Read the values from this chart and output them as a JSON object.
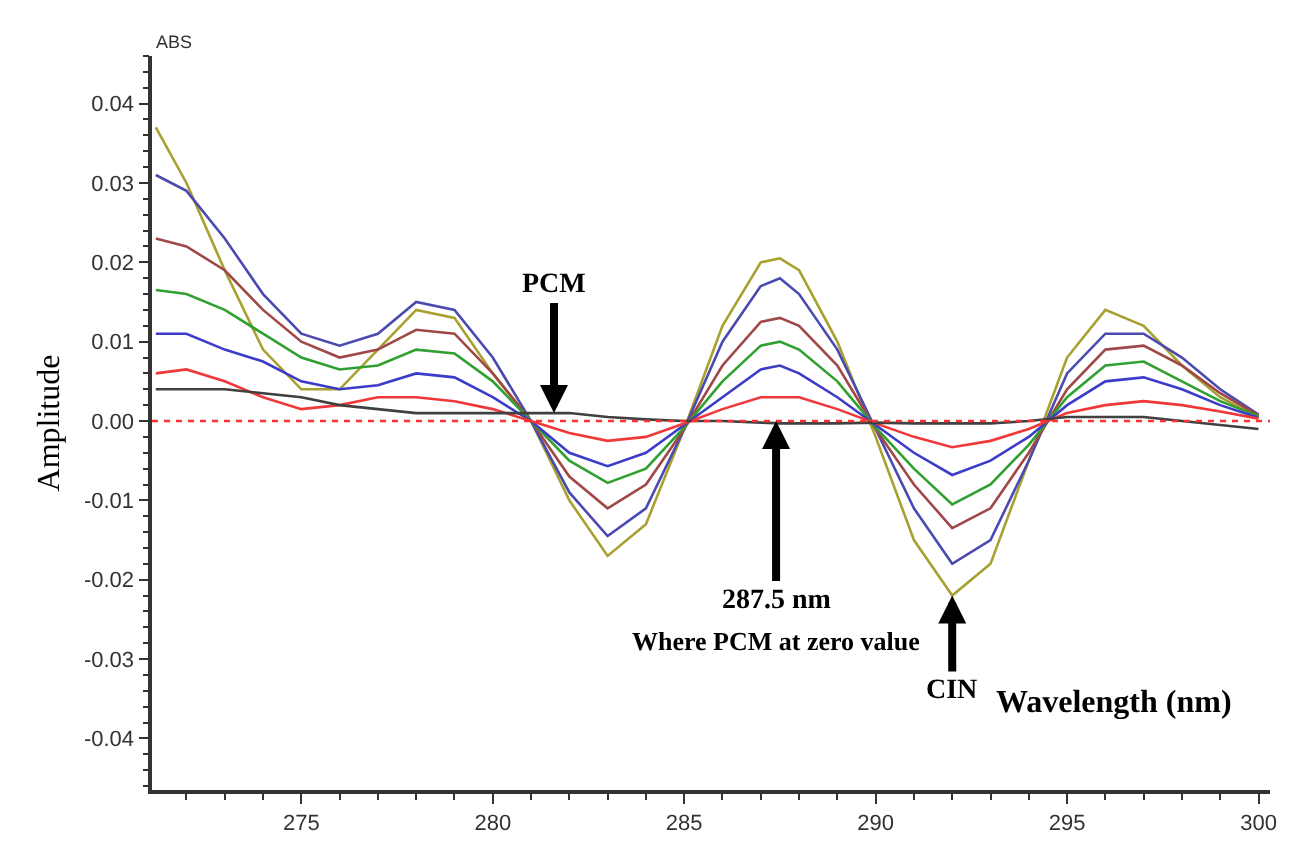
{
  "chart_data": {
    "type": "line",
    "xlabel": "Wavelength (nm)",
    "ylabel": "Amplitude",
    "x": [
      271.2,
      272,
      273,
      274,
      275,
      276,
      277,
      278,
      279,
      280,
      281,
      282,
      283,
      284,
      285,
      286,
      287,
      287.5,
      288,
      289,
      290,
      291,
      292,
      293,
      294,
      295,
      296,
      297,
      298,
      299,
      300
    ],
    "series": [
      {
        "color": "#a8a030",
        "values": [
          0.037,
          0.03,
          0.019,
          0.009,
          0.004,
          0.004,
          0.009,
          0.014,
          0.013,
          0.006,
          0.0,
          -0.01,
          -0.017,
          -0.013,
          -0.001,
          0.012,
          0.02,
          0.0205,
          0.019,
          0.01,
          -0.002,
          -0.015,
          -0.022,
          -0.018,
          -0.005,
          0.008,
          0.014,
          0.012,
          0.007,
          0.003,
          0.0005
        ]
      },
      {
        "color": "#4a4ab0",
        "values": [
          0.031,
          0.029,
          0.023,
          0.016,
          0.011,
          0.0095,
          0.011,
          0.015,
          0.014,
          0.008,
          0.0,
          -0.009,
          -0.0145,
          -0.011,
          -0.001,
          0.01,
          0.017,
          0.018,
          0.016,
          0.009,
          -0.001,
          -0.011,
          -0.018,
          -0.015,
          -0.005,
          0.006,
          0.011,
          0.011,
          0.008,
          0.004,
          0.0008
        ]
      },
      {
        "color": "#a04848",
        "values": [
          0.023,
          0.022,
          0.019,
          0.014,
          0.01,
          0.008,
          0.009,
          0.0115,
          0.011,
          0.006,
          0.0,
          -0.007,
          -0.011,
          -0.008,
          -0.001,
          0.007,
          0.0125,
          0.013,
          0.012,
          0.007,
          -0.001,
          -0.008,
          -0.0135,
          -0.011,
          -0.004,
          0.004,
          0.009,
          0.0095,
          0.007,
          0.0035,
          0.0007
        ]
      },
      {
        "color": "#30a030",
        "values": [
          0.0165,
          0.016,
          0.014,
          0.011,
          0.008,
          0.0065,
          0.007,
          0.009,
          0.0085,
          0.005,
          0.0,
          -0.005,
          -0.0078,
          -0.006,
          -0.0008,
          0.005,
          0.0095,
          0.01,
          0.009,
          0.005,
          -0.0008,
          -0.006,
          -0.0105,
          -0.008,
          -0.003,
          0.003,
          0.007,
          0.0075,
          0.005,
          0.0025,
          0.0006
        ]
      },
      {
        "color": "#3c3cc8",
        "values": [
          0.011,
          0.011,
          0.009,
          0.0075,
          0.005,
          0.004,
          0.0045,
          0.006,
          0.0055,
          0.003,
          0.0,
          -0.004,
          -0.0057,
          -0.004,
          -0.0005,
          0.003,
          0.0065,
          0.007,
          0.006,
          0.003,
          -0.0005,
          -0.004,
          -0.0068,
          -0.005,
          -0.002,
          0.002,
          0.005,
          0.0055,
          0.004,
          0.002,
          0.0004
        ]
      },
      {
        "color": "#f03838",
        "values": [
          0.006,
          0.0065,
          0.005,
          0.003,
          0.0015,
          0.002,
          0.003,
          0.003,
          0.0025,
          0.0015,
          0.0,
          -0.0015,
          -0.0025,
          -0.002,
          -0.0003,
          0.0015,
          0.003,
          0.003,
          0.003,
          0.0015,
          -0.0003,
          -0.002,
          -0.0033,
          -0.0025,
          -0.001,
          0.001,
          0.002,
          0.0025,
          0.002,
          0.0012,
          0.0003
        ]
      },
      {
        "color": "#404040",
        "values": [
          0.004,
          0.004,
          0.004,
          0.0035,
          0.003,
          0.002,
          0.0015,
          0.001,
          0.001,
          0.001,
          0.001,
          0.001,
          0.0005,
          0.0002,
          0.0,
          0.0,
          -0.0002,
          -0.0003,
          -0.0003,
          -0.0003,
          -0.0002,
          -0.0003,
          -0.0003,
          -0.0003,
          0.0,
          0.0005,
          0.0005,
          0.0005,
          0.0,
          -0.0005,
          -0.001
        ]
      }
    ],
    "xlim": [
      271.1,
      300.3
    ],
    "xticks": [
      275,
      280,
      285,
      290,
      295,
      300
    ],
    "ylim": [
      -0.0465,
      0.046
    ],
    "yticks": [
      {
        "value": -0.04,
        "label": "-0.04"
      },
      {
        "value": -0.03,
        "label": "-0.03"
      },
      {
        "value": -0.02,
        "label": "-0.02"
      },
      {
        "value": -0.01,
        "label": "-0.01"
      },
      {
        "value": 0,
        "label": "0.00"
      },
      {
        "value": 0.01,
        "label": "0.01"
      },
      {
        "value": 0.02,
        "label": "0.02"
      },
      {
        "value": 0.03,
        "label": "0.03"
      },
      {
        "value": 0.04,
        "label": "0.04"
      }
    ],
    "ref_lines": [
      {
        "axis": "y",
        "value": 0,
        "color": "#ff3030",
        "line_style": "dotted"
      }
    ],
    "annotations": [
      "ABS",
      {
        "text": "PCM",
        "x": 281.6,
        "y": 0.001
      },
      {
        "text": "287.5 nm",
        "x": 287.4,
        "y": 0.0
      },
      "Where PCM at zero value",
      {
        "text": "CIN",
        "x": 292,
        "y": -0.022
      }
    ],
    "marker": "none",
    "line_style": "solid"
  }
}
